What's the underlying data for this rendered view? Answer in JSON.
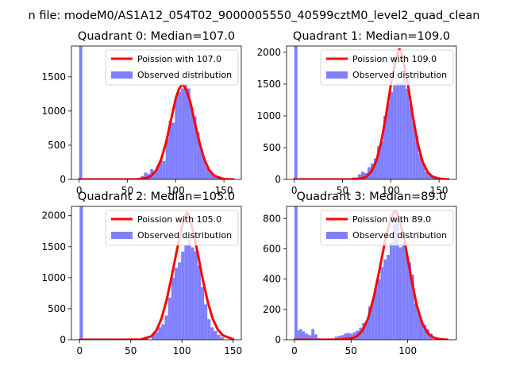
{
  "figure": {
    "suptitle": "n file: modeM0/AS1A12_054T02_9000005550_40599cztM0_level2_quad_clean"
  },
  "colors": {
    "observed_fill": "#8080ff",
    "poisson_line": "#ff0000",
    "axes": "#000000",
    "background": "#ffffff"
  },
  "chart_data": [
    {
      "type": "bar",
      "title": "Quadrant 0: Median=107.0",
      "xlim": [
        -8,
        168
      ],
      "ylim": [
        0,
        1950
      ],
      "xticks": [
        0,
        50,
        100,
        150
      ],
      "yticks": [
        0,
        500,
        1000,
        1500
      ],
      "xtick_labels": [
        "0",
        "50",
        "100",
        "150"
      ],
      "ytick_labels": [
        "0",
        "500",
        "1000",
        "1500"
      ],
      "legend": {
        "location": "upper right"
      },
      "series": [
        {
          "name": "Poission with 107.0",
          "kind": "line",
          "x": [
            0,
            20,
            40,
            60,
            70,
            75,
            80,
            85,
            90,
            95,
            100,
            103,
            106,
            107,
            108,
            111,
            115,
            120,
            125,
            130,
            135,
            140,
            150,
            160
          ],
          "y": [
            0,
            0,
            0,
            1,
            20,
            55,
            137,
            295,
            538,
            857,
            1179,
            1307,
            1380,
            1387,
            1380,
            1307,
            1140,
            825,
            520,
            280,
            130,
            52,
            5,
            0
          ]
        },
        {
          "name": "Observed distribution",
          "kind": "hist",
          "bin_width": 3.2,
          "bins": [
            {
              "x": 0,
              "y": 1950
            },
            {
              "x": 1.6,
              "y": 8
            },
            {
              "x": 64,
              "y": 50
            },
            {
              "x": 67.2,
              "y": 100
            },
            {
              "x": 70.4,
              "y": 80
            },
            {
              "x": 73.6,
              "y": 150
            },
            {
              "x": 76.8,
              "y": 120
            },
            {
              "x": 80,
              "y": 200
            },
            {
              "x": 83.2,
              "y": 280
            },
            {
              "x": 86.4,
              "y": 270
            },
            {
              "x": 89.6,
              "y": 600
            },
            {
              "x": 92.8,
              "y": 860
            },
            {
              "x": 96,
              "y": 830
            },
            {
              "x": 99.2,
              "y": 1210
            },
            {
              "x": 102.4,
              "y": 1280
            },
            {
              "x": 105.6,
              "y": 1330
            },
            {
              "x": 108.8,
              "y": 1400
            },
            {
              "x": 112,
              "y": 1330
            },
            {
              "x": 115.2,
              "y": 1050
            },
            {
              "x": 118.4,
              "y": 920
            },
            {
              "x": 121.6,
              "y": 690
            },
            {
              "x": 124.8,
              "y": 450
            },
            {
              "x": 128,
              "y": 310
            },
            {
              "x": 131.2,
              "y": 180
            },
            {
              "x": 134.4,
              "y": 120
            },
            {
              "x": 137.6,
              "y": 60
            },
            {
              "x": 140.8,
              "y": 40
            },
            {
              "x": 144,
              "y": 20
            }
          ]
        }
      ]
    },
    {
      "type": "bar",
      "title": "Quadrant 1: Median=109.0",
      "xlim": [
        -8,
        168
      ],
      "ylim": [
        0,
        2100
      ],
      "xticks": [
        0,
        50,
        100,
        150
      ],
      "yticks": [
        0,
        500,
        1000,
        1500,
        2000
      ],
      "xtick_labels": [
        "0",
        "50",
        "100",
        "150"
      ],
      "ytick_labels": [
        "0",
        "500",
        "1000",
        "1500",
        "2000"
      ],
      "legend": {
        "location": "upper right"
      },
      "series": [
        {
          "name": "Poission with 109.0",
          "kind": "line",
          "x": [
            0,
            20,
            40,
            60,
            70,
            75,
            80,
            85,
            90,
            95,
            100,
            105,
            108,
            109,
            110,
            113,
            118,
            123,
            128,
            133,
            138,
            143,
            150,
            160
          ],
          "y": [
            0,
            0,
            0,
            1,
            17,
            45,
            122,
            290,
            585,
            1000,
            1480,
            1880,
            2030,
            2050,
            2030,
            1880,
            1470,
            980,
            560,
            280,
            120,
            45,
            12,
            0
          ]
        },
        {
          "name": "Observed distribution",
          "kind": "hist",
          "bin_width": 3.3,
          "bins": [
            {
              "x": 0,
              "y": 2100
            },
            {
              "x": 1.6,
              "y": 10
            },
            {
              "x": 60,
              "y": 30
            },
            {
              "x": 66,
              "y": 80
            },
            {
              "x": 69.3,
              "y": 120
            },
            {
              "x": 72.6,
              "y": 100
            },
            {
              "x": 75.9,
              "y": 190
            },
            {
              "x": 79.2,
              "y": 250
            },
            {
              "x": 82.5,
              "y": 330
            },
            {
              "x": 85.8,
              "y": 520
            },
            {
              "x": 89.1,
              "y": 600
            },
            {
              "x": 92.4,
              "y": 1000
            },
            {
              "x": 95.7,
              "y": 1200
            },
            {
              "x": 99,
              "y": 1380
            },
            {
              "x": 102.3,
              "y": 1480
            },
            {
              "x": 105.6,
              "y": 1510
            },
            {
              "x": 108.9,
              "y": 1520
            },
            {
              "x": 112.2,
              "y": 1600
            },
            {
              "x": 115.5,
              "y": 1430
            },
            {
              "x": 118.8,
              "y": 1200
            },
            {
              "x": 122.1,
              "y": 920
            },
            {
              "x": 125.4,
              "y": 680
            },
            {
              "x": 128.7,
              "y": 400
            },
            {
              "x": 132,
              "y": 250
            },
            {
              "x": 135.3,
              "y": 120
            },
            {
              "x": 138.6,
              "y": 90
            },
            {
              "x": 141.9,
              "y": 60
            },
            {
              "x": 145.2,
              "y": 30
            },
            {
              "x": 148.5,
              "y": 15
            }
          ]
        }
      ]
    },
    {
      "type": "bar",
      "title": "Quadrant 2: Median=105.0",
      "xlim": [
        -8,
        158
      ],
      "ylim": [
        0,
        2150
      ],
      "xticks": [
        0,
        50,
        100,
        150
      ],
      "yticks": [
        0,
        500,
        1000,
        1500,
        2000
      ],
      "xtick_labels": [
        "0",
        "50",
        "100",
        "150"
      ],
      "ytick_labels": [
        "0",
        "500",
        "1000",
        "1500",
        "2000"
      ],
      "legend": {
        "location": "upper right"
      },
      "series": [
        {
          "name": "Poission with 105.0",
          "kind": "line",
          "x": [
            0,
            20,
            40,
            60,
            70,
            75,
            80,
            85,
            90,
            95,
            100,
            104,
            105,
            106,
            110,
            115,
            120,
            125,
            130,
            135,
            140,
            150
          ],
          "y": [
            0,
            0,
            0,
            4,
            55,
            148,
            340,
            640,
            1020,
            1440,
            1820,
            2030,
            2050,
            2030,
            1810,
            1430,
            1000,
            625,
            340,
            165,
            70,
            8
          ]
        },
        {
          "name": "Observed distribution",
          "kind": "hist",
          "bin_width": 3.2,
          "bins": [
            {
              "x": 0,
              "y": 2150
            },
            {
              "x": 64,
              "y": 30
            },
            {
              "x": 70.4,
              "y": 100
            },
            {
              "x": 73.6,
              "y": 120
            },
            {
              "x": 76.8,
              "y": 200
            },
            {
              "x": 80,
              "y": 250
            },
            {
              "x": 83.2,
              "y": 390
            },
            {
              "x": 86.4,
              "y": 680
            },
            {
              "x": 89.6,
              "y": 1000
            },
            {
              "x": 92.8,
              "y": 1160
            },
            {
              "x": 96,
              "y": 1250
            },
            {
              "x": 99.2,
              "y": 1420
            },
            {
              "x": 102.4,
              "y": 1520
            },
            {
              "x": 105.6,
              "y": 1670
            },
            {
              "x": 108.8,
              "y": 1490
            },
            {
              "x": 112,
              "y": 1430
            },
            {
              "x": 115.2,
              "y": 1200
            },
            {
              "x": 118.4,
              "y": 850
            },
            {
              "x": 121.6,
              "y": 570
            },
            {
              "x": 124.8,
              "y": 330
            },
            {
              "x": 128,
              "y": 200
            },
            {
              "x": 131.2,
              "y": 140
            },
            {
              "x": 134.4,
              "y": 80
            },
            {
              "x": 137.6,
              "y": 40
            }
          ]
        }
      ]
    },
    {
      "type": "bar",
      "title": "Quadrant 3: Median=89.0",
      "xlim": [
        -7,
        143
      ],
      "ylim": [
        0,
        880
      ],
      "xticks": [
        0,
        50,
        100
      ],
      "yticks": [
        0,
        200,
        400,
        600,
        800
      ],
      "xtick_labels": [
        "0",
        "50",
        "100"
      ],
      "ytick_labels": [
        "0",
        "200",
        "400",
        "600",
        "800"
      ],
      "legend": {
        "location": "upper right"
      },
      "series": [
        {
          "name": "Poission with 89.0",
          "kind": "line",
          "x": [
            0,
            20,
            40,
            50,
            55,
            60,
            65,
            70,
            75,
            80,
            85,
            88,
            89,
            90,
            93,
            98,
            103,
            108,
            113,
            118,
            123,
            128,
            135
          ],
          "y": [
            0,
            0,
            1,
            8,
            22,
            60,
            140,
            280,
            460,
            650,
            800,
            845,
            848,
            845,
            790,
            620,
            410,
            225,
            105,
            40,
            13,
            4,
            0
          ]
        },
        {
          "name": "Observed distribution",
          "kind": "hist",
          "bin_width": 2.7,
          "bins": [
            {
              "x": 0,
              "y": 880
            },
            {
              "x": 1.4,
              "y": 60
            },
            {
              "x": 4.1,
              "y": 70
            },
            {
              "x": 6.8,
              "y": 55
            },
            {
              "x": 9.5,
              "y": 40
            },
            {
              "x": 12.2,
              "y": 30
            },
            {
              "x": 14.9,
              "y": 70
            },
            {
              "x": 17.6,
              "y": 35
            },
            {
              "x": 20.3,
              "y": 10
            },
            {
              "x": 35.5,
              "y": 20
            },
            {
              "x": 38.2,
              "y": 25
            },
            {
              "x": 40.9,
              "y": 30
            },
            {
              "x": 43.6,
              "y": 40
            },
            {
              "x": 46.3,
              "y": 45
            },
            {
              "x": 49,
              "y": 40
            },
            {
              "x": 51.7,
              "y": 50
            },
            {
              "x": 54.4,
              "y": 60
            },
            {
              "x": 57.1,
              "y": 80
            },
            {
              "x": 59.8,
              "y": 110
            },
            {
              "x": 62.5,
              "y": 120
            },
            {
              "x": 65.2,
              "y": 220
            },
            {
              "x": 67.9,
              "y": 260
            },
            {
              "x": 70.6,
              "y": 340
            },
            {
              "x": 73.3,
              "y": 400
            },
            {
              "x": 76,
              "y": 480
            },
            {
              "x": 78.7,
              "y": 530
            },
            {
              "x": 81.4,
              "y": 560
            },
            {
              "x": 84.1,
              "y": 640
            },
            {
              "x": 86.8,
              "y": 760
            },
            {
              "x": 89.5,
              "y": 800
            },
            {
              "x": 92.2,
              "y": 610
            },
            {
              "x": 94.9,
              "y": 640
            },
            {
              "x": 97.6,
              "y": 580
            },
            {
              "x": 100.3,
              "y": 510
            },
            {
              "x": 103,
              "y": 430
            },
            {
              "x": 105.7,
              "y": 240
            },
            {
              "x": 108.4,
              "y": 180
            },
            {
              "x": 111.1,
              "y": 120
            },
            {
              "x": 113.8,
              "y": 100
            },
            {
              "x": 116.5,
              "y": 70
            },
            {
              "x": 119.2,
              "y": 40
            }
          ]
        }
      ]
    }
  ]
}
